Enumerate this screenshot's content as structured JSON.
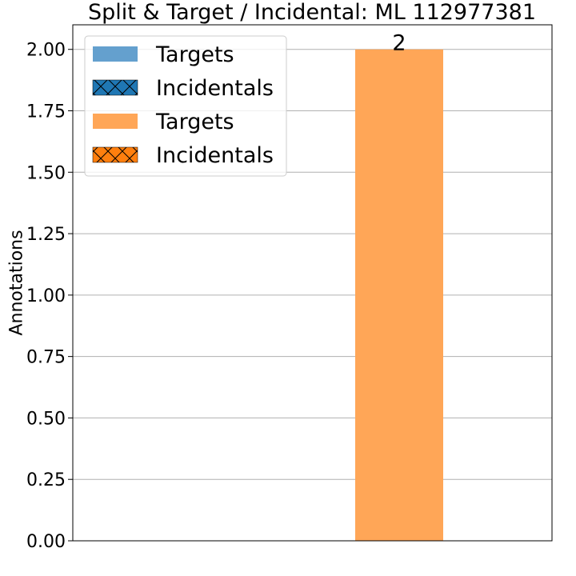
{
  "chart_data": {
    "type": "bar",
    "title": "Split & Target / Incidental: ML 112977381",
    "xlabel": "",
    "ylabel": "Annotations",
    "ylim": [
      0,
      2.1
    ],
    "yticks": [
      "0.00",
      "0.25",
      "0.50",
      "0.75",
      "1.00",
      "1.25",
      "1.50",
      "1.75",
      "2.00"
    ],
    "ytick_values": [
      0,
      0.25,
      0.5,
      0.75,
      1.0,
      1.25,
      1.5,
      1.75,
      2.0
    ],
    "grid": "horizontal",
    "categories": [
      "",
      ""
    ],
    "series": [
      {
        "name": "Targets",
        "values": [
          0,
          0
        ],
        "color": "#64a0ce",
        "hatch": false
      },
      {
        "name": "Incidentals",
        "values": [
          0,
          0
        ],
        "color": "#1f77b4",
        "hatch": true
      },
      {
        "name": "Targets",
        "values": [
          0,
          2
        ],
        "color": "#ffa657",
        "hatch": false
      },
      {
        "name": "Incidentals",
        "values": [
          0,
          0
        ],
        "color": "#ff7f0e",
        "hatch": true
      }
    ],
    "data_labels": [
      {
        "category_index": 1,
        "text": "2",
        "value": 2
      }
    ],
    "legend": {
      "position": "top-left",
      "entries": [
        "Targets",
        "Incidentals",
        "Targets",
        "Incidentals"
      ]
    }
  }
}
